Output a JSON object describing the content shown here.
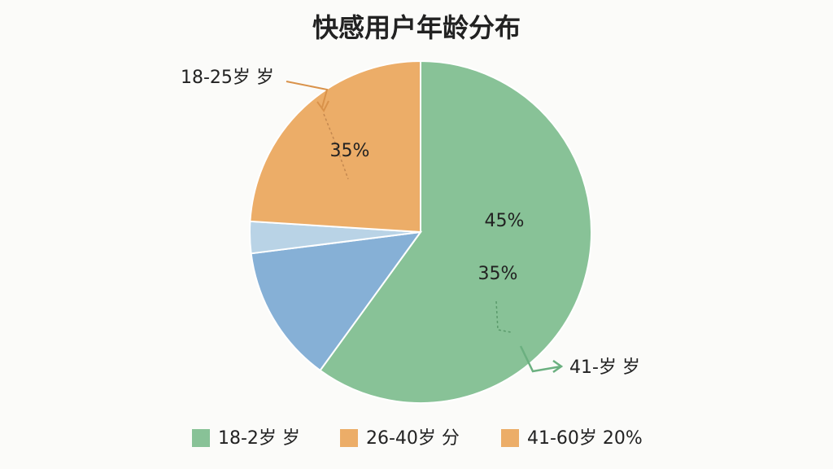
{
  "chart_data": {
    "type": "pie",
    "title": "快感用户年龄分布",
    "values": [
      60,
      13,
      3,
      24
    ],
    "colors": [
      "#88c297",
      "#86b0d6",
      "#b9d3e6",
      "#ecad68"
    ],
    "start_angle": 0,
    "direction": "clockwise",
    "annotations": [
      "18-25岁 岁",
      "35%",
      "45%",
      "35%",
      "41-岁 岁"
    ],
    "legend": [
      {
        "label": "18-2岁 岁",
        "color": "#88c297"
      },
      {
        "label": "26-40岁 分",
        "color": "#ecad68"
      },
      {
        "label": "41-60岁 20%",
        "color": "#ecad68"
      }
    ]
  }
}
